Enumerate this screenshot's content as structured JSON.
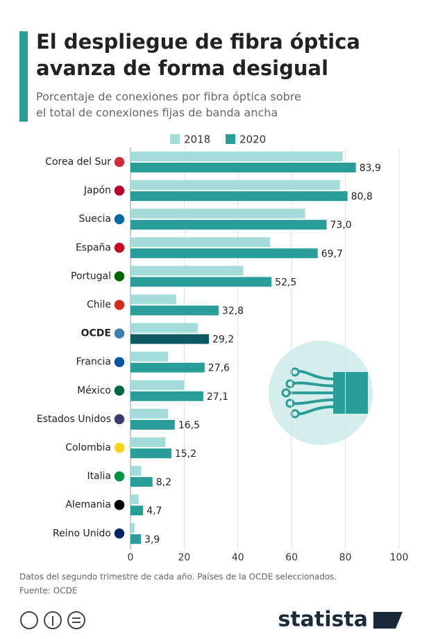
{
  "chart_data": {
    "type": "hbar",
    "title": [
      "El despliegue de fibra óptica",
      "avanza de forma desigual"
    ],
    "subtitle": [
      "Porcentaje de conexiones por fibra óptica sobre",
      "el total de conexiones fijas de banda ancha"
    ],
    "categories": [
      "Corea del Sur",
      "Japón",
      "Suecia",
      "España",
      "Portugal",
      "Chile",
      "OCDE",
      "Francia",
      "México",
      "Estados Unidos",
      "Colombia",
      "Italia",
      "Alemania",
      "Reino Unido"
    ],
    "series": [
      {
        "name": "2018",
        "color": "#a3dcd9",
        "values": [
          79,
          78,
          65,
          52,
          42,
          17,
          25,
          14,
          20,
          14,
          13,
          4,
          3,
          1.5
        ]
      },
      {
        "name": "2020",
        "color": "#2a9d98",
        "values": [
          83.9,
          80.8,
          73.0,
          69.7,
          52.5,
          32.8,
          29.2,
          27.6,
          27.1,
          16.5,
          15.2,
          8.2,
          4.7,
          3.9
        ],
        "value_labels": [
          "83,9",
          "80,8",
          "73,0",
          "69,7",
          "52,5",
          "32,8",
          "29,2",
          "27,6",
          "27,1",
          "16,5",
          "15,2",
          "8,2",
          "4,7",
          "3,9"
        ]
      }
    ],
    "highlight": {
      "index": 6,
      "color": "#0e5a60"
    },
    "xlim": [
      0,
      100
    ],
    "xticks": [
      0,
      20,
      40,
      60,
      80,
      100
    ],
    "grid": true,
    "note": "Datos del segundo trimestre de cada año. Países de la OCDE seleccionados.",
    "source": "Fuente: OCDE",
    "brand": "statista"
  }
}
